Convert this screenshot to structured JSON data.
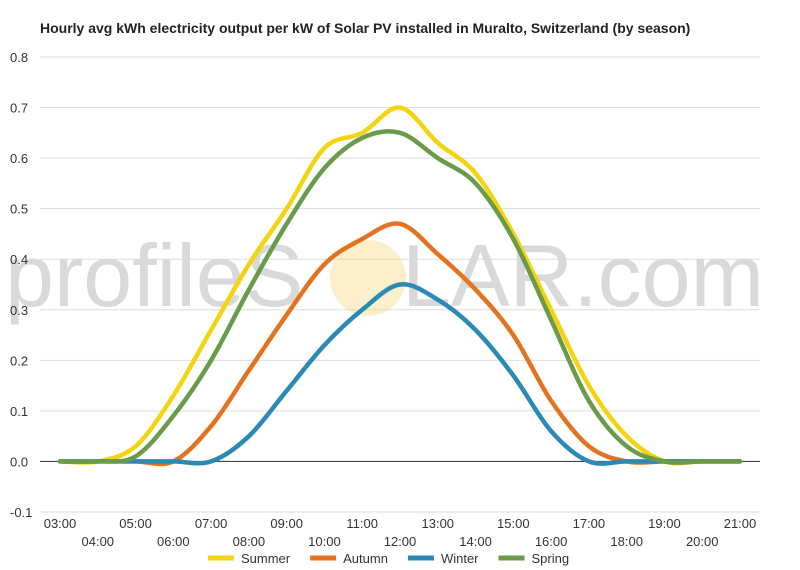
{
  "watermark": {
    "text_left": "profileS",
    "text_right": "LAR.com"
  },
  "chart_data": {
    "type": "line",
    "title": "Hourly avg kWh electricity output per kW of Solar PV installed in Muralto, Switzerland (by season)",
    "xlabel": "",
    "ylabel": "",
    "ylim": [
      -0.1,
      0.8
    ],
    "yticks": [
      "-0.1",
      "0.0",
      "0.1",
      "0.2",
      "0.3",
      "0.4",
      "0.5",
      "0.6",
      "0.7",
      "0.8"
    ],
    "x": [
      "03:00",
      "04:00",
      "05:00",
      "06:00",
      "07:00",
      "08:00",
      "09:00",
      "10:00",
      "11:00",
      "12:00",
      "13:00",
      "14:00",
      "15:00",
      "16:00",
      "17:00",
      "18:00",
      "19:00",
      "20:00",
      "21:00"
    ],
    "grid": true,
    "legend": "bottom",
    "series": [
      {
        "name": "Summer",
        "color": "#f5d40f",
        "values": [
          0.0,
          0.0,
          0.03,
          0.13,
          0.26,
          0.39,
          0.5,
          0.62,
          0.65,
          0.7,
          0.63,
          0.57,
          0.45,
          0.3,
          0.15,
          0.05,
          0.0,
          0.0,
          0.0
        ]
      },
      {
        "name": "Autumn",
        "color": "#e4731f",
        "values": [
          0.0,
          0.0,
          0.0,
          0.0,
          0.07,
          0.18,
          0.29,
          0.39,
          0.44,
          0.47,
          0.41,
          0.34,
          0.25,
          0.12,
          0.03,
          0.0,
          0.0,
          0.0,
          0.0
        ]
      },
      {
        "name": "Winter",
        "color": "#2a8ab5",
        "values": [
          0.0,
          0.0,
          0.0,
          0.0,
          0.0,
          0.05,
          0.14,
          0.23,
          0.3,
          0.35,
          0.32,
          0.26,
          0.17,
          0.06,
          0.0,
          0.0,
          0.0,
          0.0,
          0.0
        ]
      },
      {
        "name": "Spring",
        "color": "#6a9b4b",
        "values": [
          0.0,
          0.0,
          0.01,
          0.09,
          0.2,
          0.34,
          0.47,
          0.58,
          0.64,
          0.65,
          0.6,
          0.55,
          0.44,
          0.28,
          0.12,
          0.03,
          0.0,
          0.0,
          0.0
        ]
      }
    ]
  }
}
